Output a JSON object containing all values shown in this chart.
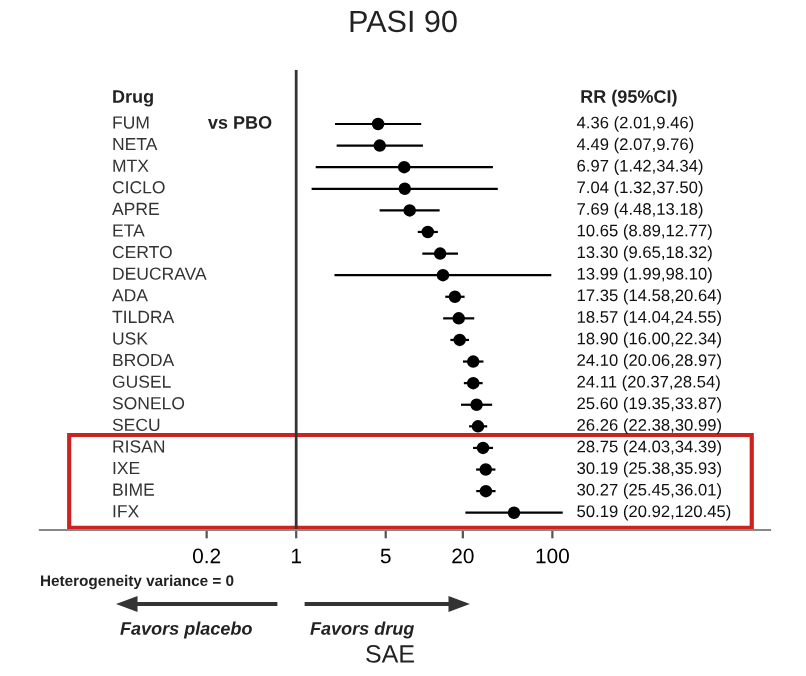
{
  "chart_data": {
    "type": "scatter",
    "title": "PASI 90",
    "categories": [
      "FUM",
      "NETA",
      "MTX",
      "CICLO",
      "APRE",
      "ETA",
      "CERTO",
      "DEUCRAVA",
      "ADA",
      "TILDRA",
      "USK",
      "BRODA",
      "GUSEL",
      "SONELO",
      "SECU",
      "RISAN",
      "IXE",
      "BIME",
      "IFX"
    ],
    "orientation": "horizontal",
    "series": [
      {
        "color": "#000000",
        "values": [
          4.36,
          4.49,
          6.97,
          7.04,
          7.69,
          10.65,
          13.3,
          13.99,
          17.35,
          18.57,
          18.9,
          24.1,
          24.11,
          25.6,
          26.26,
          28.75,
          30.19,
          30.27,
          50.19
        ],
        "errors": [
          [
            2.01,
            9.46
          ],
          [
            2.07,
            9.76
          ],
          [
            1.42,
            34.34
          ],
          [
            1.32,
            37.5
          ],
          [
            4.48,
            13.18
          ],
          [
            8.89,
            12.77
          ],
          [
            9.65,
            18.32
          ],
          [
            1.99,
            98.1
          ],
          [
            14.58,
            20.64
          ],
          [
            14.04,
            24.55
          ],
          [
            16.0,
            22.34
          ],
          [
            20.06,
            28.97
          ],
          [
            20.37,
            28.54
          ],
          [
            19.35,
            33.87
          ],
          [
            22.38,
            30.99
          ],
          [
            24.03,
            34.39
          ],
          [
            25.38,
            35.93
          ],
          [
            25.45,
            36.01
          ],
          [
            20.92,
            120.45
          ]
        ]
      }
    ],
    "log": "x",
    "xlim": [
      0.01,
      5000
    ],
    "xticks": [
      0.2,
      1,
      5,
      20,
      100
    ],
    "marker": "circle",
    "grid": false,
    "legend": false,
    "ref_lines": [
      {
        "axis": "x",
        "value": 1,
        "color": "#333333"
      }
    ],
    "annotations": [
      "Drug",
      "vs PBO",
      "RR (95%CI)",
      "Heterogeneity variance = 0",
      "Favors placebo",
      "Favors drug",
      "SAE",
      "4.36 (2.01,9.46)",
      "4.49 (2.07,9.76)",
      "6.97 (1.42,34.34)",
      "7.04 (1.32,37.50)",
      "7.69 (4.48,13.18)",
      "10.65 (8.89,12.77)",
      "13.30 (9.65,18.32)",
      "13.99 (1.99,98.10)",
      "17.35 (14.58,20.64)",
      "18.57 (14.04,24.55)",
      "18.90 (16.00,22.34)",
      "24.10 (20.06,28.97)",
      "24.11 (20.37,28.54)",
      "25.60 (19.35,33.87)",
      "26.26 (22.38,30.99)",
      "28.75 (24.03,34.39)",
      "30.19 (25.38,35.93)",
      "30.27 (25.45,36.01)",
      "50.19 (20.92,120.45)"
    ]
  }
}
